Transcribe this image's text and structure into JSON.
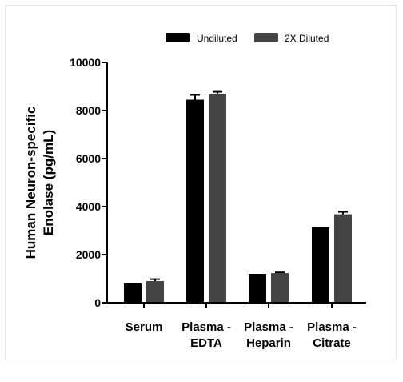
{
  "chart_data": {
    "type": "bar",
    "categories": [
      [
        "Serum"
      ],
      [
        "Plasma -",
        "EDTA"
      ],
      [
        "Plasma -",
        "Heparin"
      ],
      [
        "Plasma -",
        "Citrate"
      ]
    ],
    "series": [
      {
        "name": "Undiluted",
        "color": "#000000",
        "values": [
          800,
          8450,
          1200,
          3150
        ],
        "errors": [
          0,
          200,
          0,
          0
        ]
      },
      {
        "name": "2X Diluted",
        "color": "#444444",
        "values": [
          900,
          8700,
          1230,
          3680
        ],
        "errors": [
          80,
          80,
          30,
          100
        ]
      }
    ],
    "ylabel": [
      "Human Neuron-specific",
      "Enolase (pg/mL)"
    ],
    "ylim": [
      0,
      10000
    ],
    "yticks": [
      0,
      2000,
      4000,
      6000,
      8000,
      10000
    ],
    "grid": false,
    "legend": "top"
  }
}
